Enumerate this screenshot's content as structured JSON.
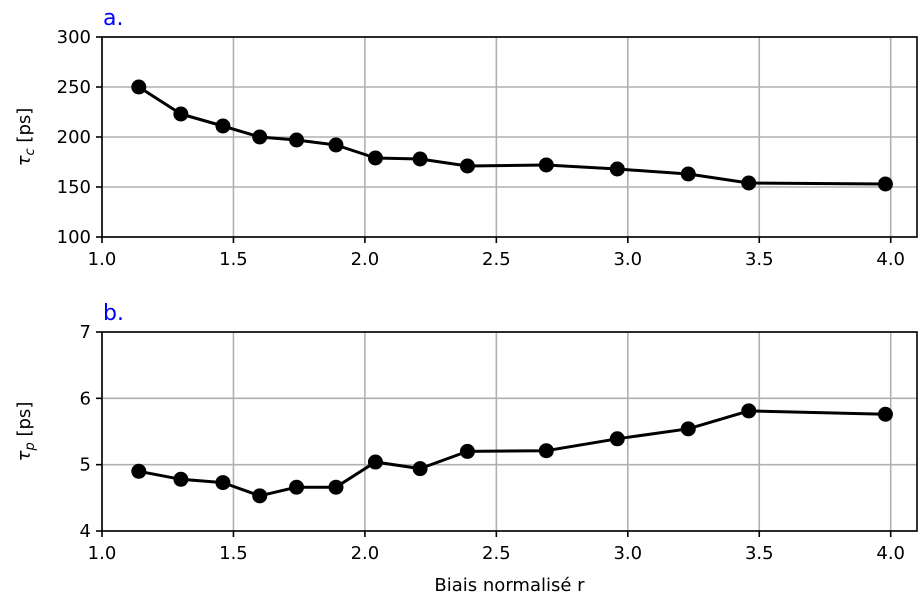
{
  "chart_data": [
    {
      "type": "line",
      "panel_label": "a.",
      "ylabel_symbol": "τ",
      "ylabel_sub": "c",
      "ylabel_unit": "[ps]",
      "xlabel": "",
      "xlim": [
        1.0,
        4.1
      ],
      "ylim": [
        100,
        300
      ],
      "xticks": [
        "1.0",
        "1.5",
        "2.0",
        "2.5",
        "3.0",
        "3.5",
        "4.0"
      ],
      "yticks": [
        "100",
        "150",
        "200",
        "250",
        "300"
      ],
      "grid": true,
      "series": [
        {
          "color": "#000000",
          "x": [
            1.14,
            1.3,
            1.46,
            1.6,
            1.74,
            1.89,
            2.04,
            2.21,
            2.39,
            2.69,
            2.96,
            3.23,
            3.46,
            3.98
          ],
          "y": [
            250,
            223,
            211,
            200,
            197,
            192,
            179,
            178,
            171,
            172,
            168,
            163,
            154,
            153
          ]
        }
      ]
    },
    {
      "type": "line",
      "panel_label": "b.",
      "ylabel_symbol": "τ",
      "ylabel_sub": "p",
      "ylabel_unit": "[ps]",
      "xlabel": "Biais normalisé r",
      "xlim": [
        1.0,
        4.1
      ],
      "ylim": [
        4,
        7
      ],
      "xticks": [
        "1.0",
        "1.5",
        "2.0",
        "2.5",
        "3.0",
        "3.5",
        "4.0"
      ],
      "yticks": [
        "4",
        "5",
        "6",
        "7"
      ],
      "grid": true,
      "series": [
        {
          "color": "#000000",
          "x": [
            1.14,
            1.3,
            1.46,
            1.6,
            1.74,
            1.89,
            2.04,
            2.21,
            2.39,
            2.69,
            2.96,
            3.23,
            3.46,
            3.98
          ],
          "y": [
            4.9,
            4.78,
            4.73,
            4.53,
            4.66,
            4.66,
            5.04,
            4.94,
            5.2,
            5.21,
            5.39,
            5.54,
            5.81,
            5.76
          ]
        }
      ]
    }
  ]
}
